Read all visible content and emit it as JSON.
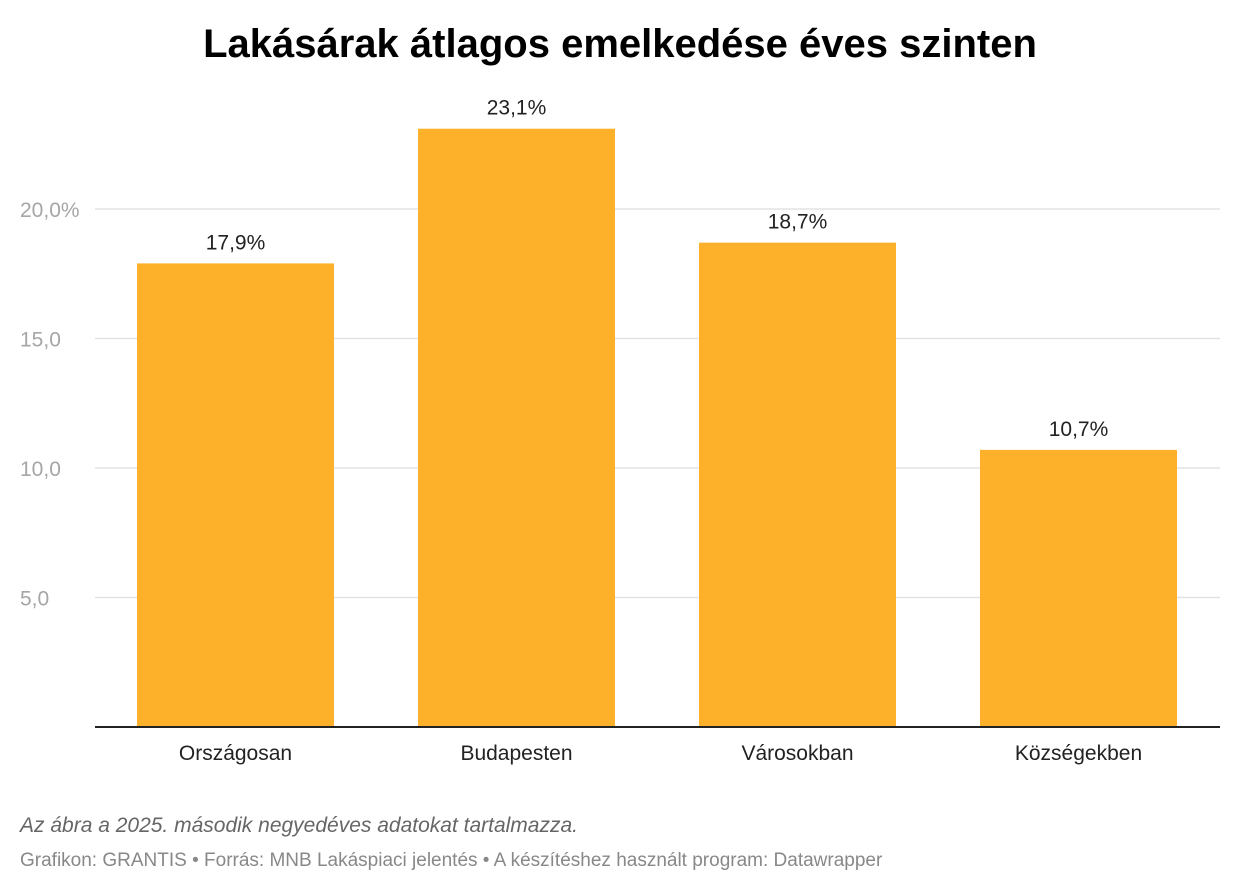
{
  "chart_data": {
    "type": "bar",
    "title": "Lakásárak átlagos emelkedése éves szinten",
    "categories": [
      "Országosan",
      "Budapesten",
      "Városokban",
      "Községekben"
    ],
    "values": [
      17.9,
      23.1,
      18.7,
      10.7
    ],
    "value_labels": [
      "17,9%",
      "23,1%",
      "18,7%",
      "10,7%"
    ],
    "yticks": [
      5,
      10,
      15,
      20
    ],
    "ytick_labels": [
      "5,0",
      "10,0",
      "15,0",
      "20,0%"
    ],
    "ylim": [
      0,
      23.1
    ],
    "grid": true,
    "bar_color": "#fdb12b"
  },
  "footer": {
    "note": "Az ábra a 2025. második negyedéves adatokat tartalmazza.",
    "byline": "Grafikon: GRANTIS • Forrás: MNB Lakáspiaci jelentés • A készítéshez használt program: Datawrapper"
  }
}
